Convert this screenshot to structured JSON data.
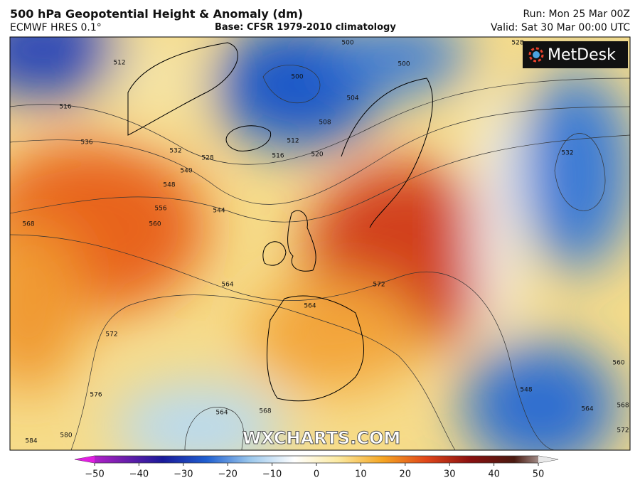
{
  "header": {
    "title": "500 hPa Geopotential Height & Anomaly (dm)",
    "model": "ECMWF HRES 0.1°",
    "base": "Base: CFSR 1979-2010 climatology",
    "run": "Run: Mon 25 Mar 00Z",
    "valid": "Valid: Sat 30 Mar 00:00 UTC"
  },
  "logo": "MetDesk",
  "watermark": "WXCHARTS.COM",
  "contour_labels": [
    512,
    516,
    536,
    532,
    528,
    540,
    548,
    556,
    560,
    568,
    544,
    564,
    572,
    576,
    584,
    580,
    564,
    500,
    504,
    508,
    512,
    516,
    520,
    500,
    500,
    532,
    572,
    564,
    568,
    548,
    560,
    564,
    568,
    572,
    528
  ],
  "colorbar": {
    "colors": [
      "#e020e0",
      "#7a1fb0",
      "#1a1a9a",
      "#1f5fd0",
      "#9cc8ec",
      "#ffffff",
      "#fbe9a0",
      "#f5a623",
      "#e0461a",
      "#8a1010",
      "#4a1a10",
      "#e8e8e8"
    ],
    "ticks": [
      {
        "value": -50,
        "label": "−50"
      },
      {
        "value": -40,
        "label": "−40"
      },
      {
        "value": -30,
        "label": "−30"
      },
      {
        "value": -20,
        "label": "−20"
      },
      {
        "value": -10,
        "label": "−10"
      },
      0,
      10,
      20,
      30,
      40,
      50
    ]
  }
}
